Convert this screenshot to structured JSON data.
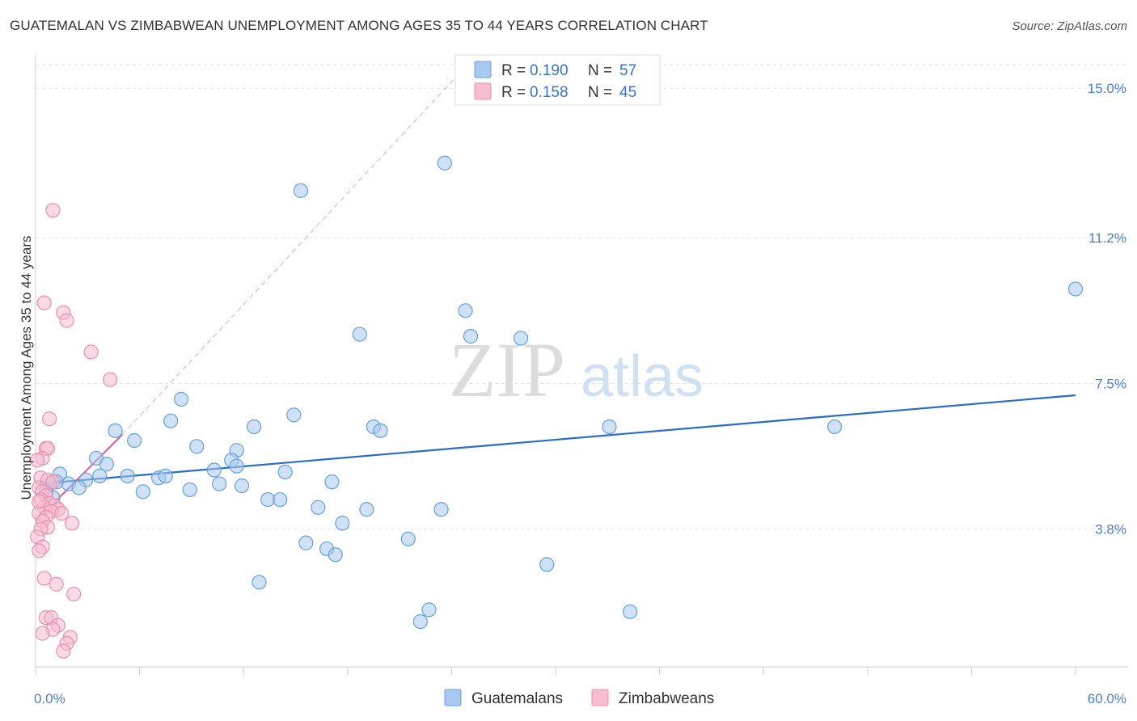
{
  "chart_data": {
    "type": "scatter",
    "title": "GUATEMALAN VS ZIMBABWEAN UNEMPLOYMENT AMONG AGES 35 TO 44 YEARS CORRELATION CHART",
    "source": "Source: ZipAtlas.com",
    "ylabel": "Unemployment Among Ages 35 to 44 years",
    "xlabel": "",
    "xlim": [
      0,
      60
    ],
    "ylim": [
      0.3,
      15.6
    ],
    "x_tick_labels": {
      "min": "0.0%",
      "max": "60.0%"
    },
    "y_ticks": [
      {
        "value": 3.8,
        "label": "3.8%"
      },
      {
        "value": 7.5,
        "label": "7.5%"
      },
      {
        "value": 11.2,
        "label": "11.2%"
      },
      {
        "value": 15.0,
        "label": "15.0%"
      }
    ],
    "watermark": {
      "zip": "ZIP",
      "atlas": "atlas"
    },
    "legend": [
      {
        "r_label": "R =",
        "r_value": "0.190",
        "n_label": "N =",
        "n_value": "57"
      },
      {
        "r_label": "R =",
        "r_value": "0.158",
        "n_label": "N =",
        "n_value": "45"
      }
    ],
    "series": [
      {
        "name": "Guatemalans",
        "color": "#a8c8f0",
        "stroke": "#6a9fd8",
        "trend_color": "#2b6cc4",
        "trend": {
          "x0": 0.2,
          "y0": 4.95,
          "x1": 60,
          "y1": 7.2
        },
        "points": [
          [
            23.6,
            13.1
          ],
          [
            15.3,
            12.4
          ],
          [
            60.0,
            9.9
          ],
          [
            24.8,
            9.35
          ],
          [
            18.7,
            8.75
          ],
          [
            28.0,
            8.65
          ],
          [
            25.1,
            8.7
          ],
          [
            8.4,
            7.1
          ],
          [
            14.9,
            6.7
          ],
          [
            7.8,
            6.55
          ],
          [
            12.6,
            6.4
          ],
          [
            19.5,
            6.4
          ],
          [
            19.9,
            6.3
          ],
          [
            4.6,
            6.3
          ],
          [
            5.7,
            6.05
          ],
          [
            9.3,
            5.9
          ],
          [
            11.6,
            5.8
          ],
          [
            33.1,
            6.4
          ],
          [
            46.1,
            6.4
          ],
          [
            3.5,
            5.6
          ],
          [
            11.3,
            5.55
          ],
          [
            10.3,
            5.3
          ],
          [
            4.1,
            5.45
          ],
          [
            11.6,
            5.4
          ],
          [
            1.4,
            5.2
          ],
          [
            3.7,
            5.15
          ],
          [
            5.3,
            5.15
          ],
          [
            7.1,
            5.1
          ],
          [
            7.5,
            5.15
          ],
          [
            14.4,
            5.25
          ],
          [
            17.1,
            5.0
          ],
          [
            2.9,
            5.05
          ],
          [
            1.9,
            4.95
          ],
          [
            10.6,
            4.95
          ],
          [
            11.9,
            4.9
          ],
          [
            2.5,
            4.85
          ],
          [
            8.9,
            4.8
          ],
          [
            6.2,
            4.75
          ],
          [
            13.4,
            4.55
          ],
          [
            14.1,
            4.55
          ],
          [
            1.0,
            4.6
          ],
          [
            16.3,
            4.35
          ],
          [
            19.1,
            4.3
          ],
          [
            23.4,
            4.3
          ],
          [
            17.7,
            3.95
          ],
          [
            21.5,
            3.55
          ],
          [
            15.6,
            3.45
          ],
          [
            16.8,
            3.3
          ],
          [
            17.3,
            3.15
          ],
          [
            29.5,
            2.9
          ],
          [
            12.9,
            2.45
          ],
          [
            22.7,
            1.75
          ],
          [
            22.2,
            1.45
          ],
          [
            34.3,
            1.7
          ],
          [
            1.2,
            5.0
          ],
          [
            0.8,
            4.95
          ],
          [
            0.6,
            4.75
          ]
        ]
      },
      {
        "name": "Zimbabweans",
        "color": "#f8bcd0",
        "stroke": "#e890b0",
        "trend_color": "#e0609a",
        "trend": {
          "x0": 0.0,
          "y0": 4.0,
          "x1": 5.0,
          "y1": 6.2
        },
        "dashed_extension": {
          "x0": 5.0,
          "y0": 6.2,
          "x1": 24.5,
          "y1": 15.4
        },
        "points": [
          [
            1.0,
            11.9
          ],
          [
            0.5,
            9.55
          ],
          [
            1.6,
            9.3
          ],
          [
            1.8,
            9.1
          ],
          [
            3.2,
            8.3
          ],
          [
            4.3,
            7.6
          ],
          [
            0.8,
            6.6
          ],
          [
            0.6,
            5.85
          ],
          [
            0.7,
            5.85
          ],
          [
            0.4,
            5.6
          ],
          [
            0.1,
            5.55
          ],
          [
            0.3,
            5.1
          ],
          [
            0.7,
            5.05
          ],
          [
            1.0,
            5.0
          ],
          [
            0.2,
            4.85
          ],
          [
            0.4,
            4.75
          ],
          [
            0.6,
            4.65
          ],
          [
            0.3,
            4.55
          ],
          [
            0.8,
            4.45
          ],
          [
            1.1,
            4.4
          ],
          [
            0.5,
            4.35
          ],
          [
            1.3,
            4.3
          ],
          [
            0.9,
            4.25
          ],
          [
            0.2,
            4.2
          ],
          [
            1.5,
            4.2
          ],
          [
            0.6,
            4.1
          ],
          [
            0.4,
            4.0
          ],
          [
            2.1,
            3.95
          ],
          [
            0.7,
            3.85
          ],
          [
            0.3,
            3.8
          ],
          [
            0.1,
            3.6
          ],
          [
            0.4,
            3.35
          ],
          [
            0.2,
            3.25
          ],
          [
            0.5,
            2.55
          ],
          [
            1.2,
            2.4
          ],
          [
            2.2,
            2.15
          ],
          [
            0.6,
            1.55
          ],
          [
            0.9,
            1.55
          ],
          [
            1.3,
            1.35
          ],
          [
            1.0,
            1.25
          ],
          [
            0.4,
            1.15
          ],
          [
            2.0,
            1.05
          ],
          [
            1.8,
            0.9
          ],
          [
            1.6,
            0.7
          ],
          [
            0.2,
            4.5
          ]
        ]
      }
    ],
    "guide_line": {
      "x0": 5.0,
      "y0": 6.2,
      "x1": 24.5,
      "y1": 15.4
    }
  }
}
